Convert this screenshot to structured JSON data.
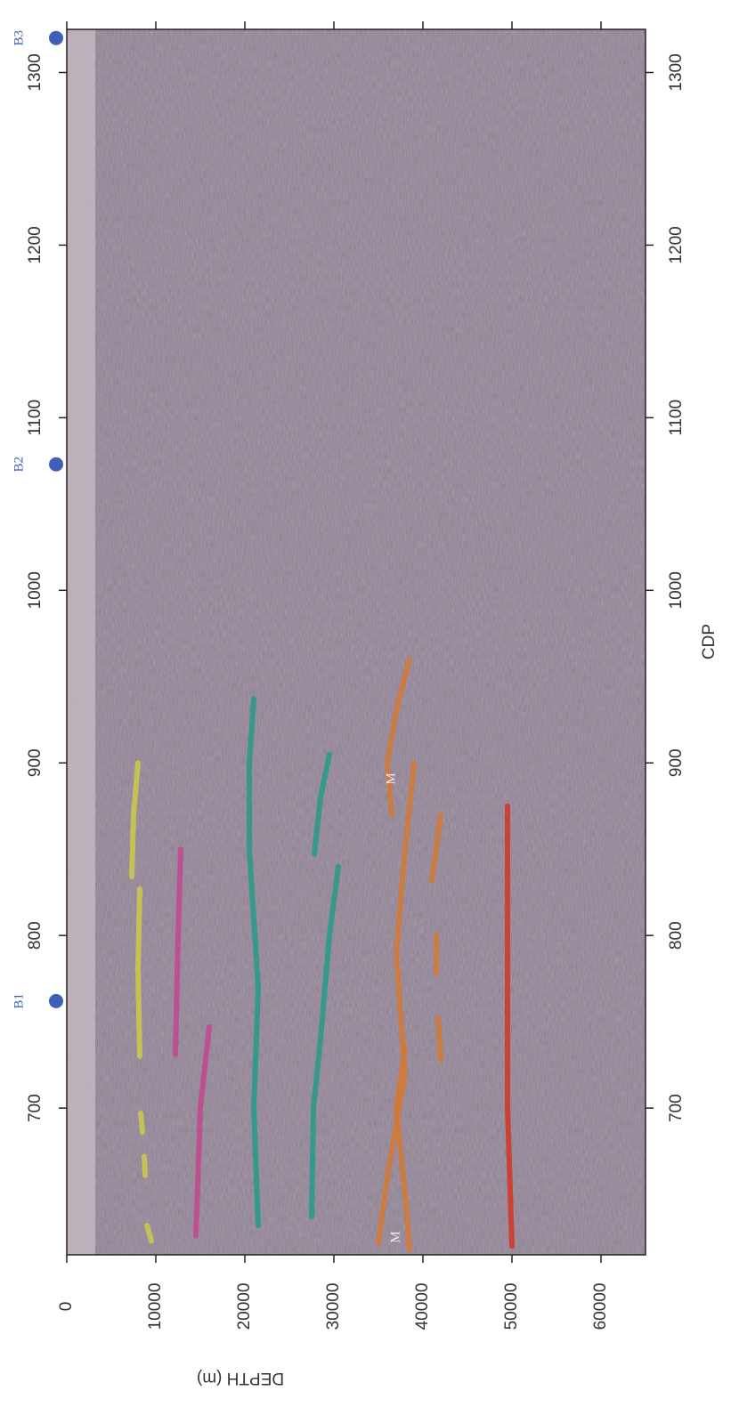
{
  "chart_data": {
    "type": "line",
    "x_label": "CDP",
    "y_label": "DEPTH (m)",
    "xlim": [
      615,
      1325
    ],
    "xticks": [
      700,
      800,
      900,
      1000,
      1100,
      1200,
      1300
    ],
    "ylim": [
      0,
      65000
    ],
    "yticks": [
      0,
      10000,
      20000,
      30000,
      40000,
      50000,
      60000
    ],
    "grid": false,
    "markers": [
      {
        "label": "B1",
        "x": 762,
        "color": "#3f5fb8"
      },
      {
        "label": "B2",
        "x": 1073,
        "color": "#3f5fb8"
      },
      {
        "label": "B3",
        "x": 1320,
        "color": "#3f5fb8"
      }
    ],
    "annotations": [
      "M",
      "M"
    ],
    "series": [
      {
        "color": "#c9c84e",
        "x": [
          623,
          632,
          null,
          661,
          672,
          null,
          686,
          697,
          null,
          730,
          780,
          827,
          null,
          834,
          870,
          900
        ],
        "values": [
          9500,
          9000,
          null,
          8800,
          8700,
          null,
          8500,
          8300,
          null,
          8200,
          8000,
          8200,
          null,
          7300,
          7500,
          8000
        ]
      },
      {
        "color": "#c04a90",
        "x": [
          626,
          700,
          747
        ],
        "values": [
          14500,
          15000,
          16000
        ]
      },
      {
        "color": "#c04a90",
        "x": [
          731,
          800,
          850
        ],
        "values": [
          12200,
          12500,
          12800
        ]
      },
      {
        "color": "#2a9a8a",
        "x": [
          632,
          700,
          770,
          850,
          900,
          937
        ],
        "values": [
          21500,
          21000,
          21500,
          20500,
          20500,
          21000
        ]
      },
      {
        "color": "#2a9a8a",
        "x": [
          637,
          700,
          740,
          800,
          840
        ],
        "values": [
          27500,
          27700,
          28500,
          29500,
          30500
        ]
      },
      {
        "color": "#2a9a8a",
        "x": [
          847,
          880,
          905
        ],
        "values": [
          27800,
          28500,
          29500
        ]
      },
      {
        "color": "#d07a3a",
        "x": [
          622,
          660,
          720,
          790,
          850,
          900
        ],
        "values": [
          35000,
          36000,
          38000,
          37000,
          38000,
          39000
        ]
      },
      {
        "color": "#d07a3a",
        "x": [
          618,
          650,
          700,
          735
        ],
        "values": [
          38500,
          38000,
          37000,
          38000
        ]
      },
      {
        "color": "#d07a3a",
        "x": [
          870,
          900,
          930,
          960
        ],
        "values": [
          36500,
          36000,
          37000,
          38500
        ]
      },
      {
        "color": "#d07a3a",
        "x": [
          728,
          752,
          null,
          778,
          800,
          null,
          832,
          870
        ],
        "values": [
          42000,
          41700,
          null,
          41500,
          41500,
          null,
          41000,
          42000
        ]
      },
      {
        "color": "#d03a2a",
        "x": [
          620,
          700,
          800,
          875
        ],
        "values": [
          50000,
          49500,
          49500,
          49500
        ]
      }
    ]
  }
}
